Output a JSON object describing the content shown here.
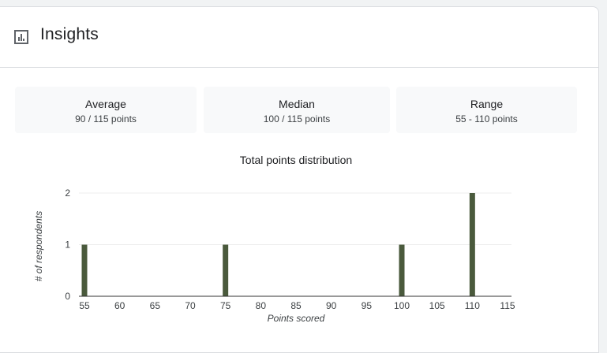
{
  "header": {
    "title": "Insights",
    "icon": "bar-chart-icon"
  },
  "stats": [
    {
      "label": "Average",
      "value": "90 / 115 points"
    },
    {
      "label": "Median",
      "value": "100 / 115 points"
    },
    {
      "label": "Range",
      "value": "55 - 110 points"
    }
  ],
  "chart_data": {
    "type": "bar",
    "title": "Total points distribution",
    "xlabel": "Points scored",
    "ylabel": "# of respondents",
    "x_ticks": [
      55,
      60,
      65,
      70,
      75,
      80,
      85,
      90,
      95,
      100,
      105,
      110,
      115
    ],
    "y_ticks": [
      0,
      1,
      2
    ],
    "xlim": [
      55,
      115
    ],
    "ylim": [
      0,
      2
    ],
    "grid": true,
    "bar_color": "#4a5a3c",
    "points": [
      {
        "x": 55,
        "y": 1
      },
      {
        "x": 75,
        "y": 1
      },
      {
        "x": 100,
        "y": 1
      },
      {
        "x": 110,
        "y": 2
      }
    ]
  }
}
